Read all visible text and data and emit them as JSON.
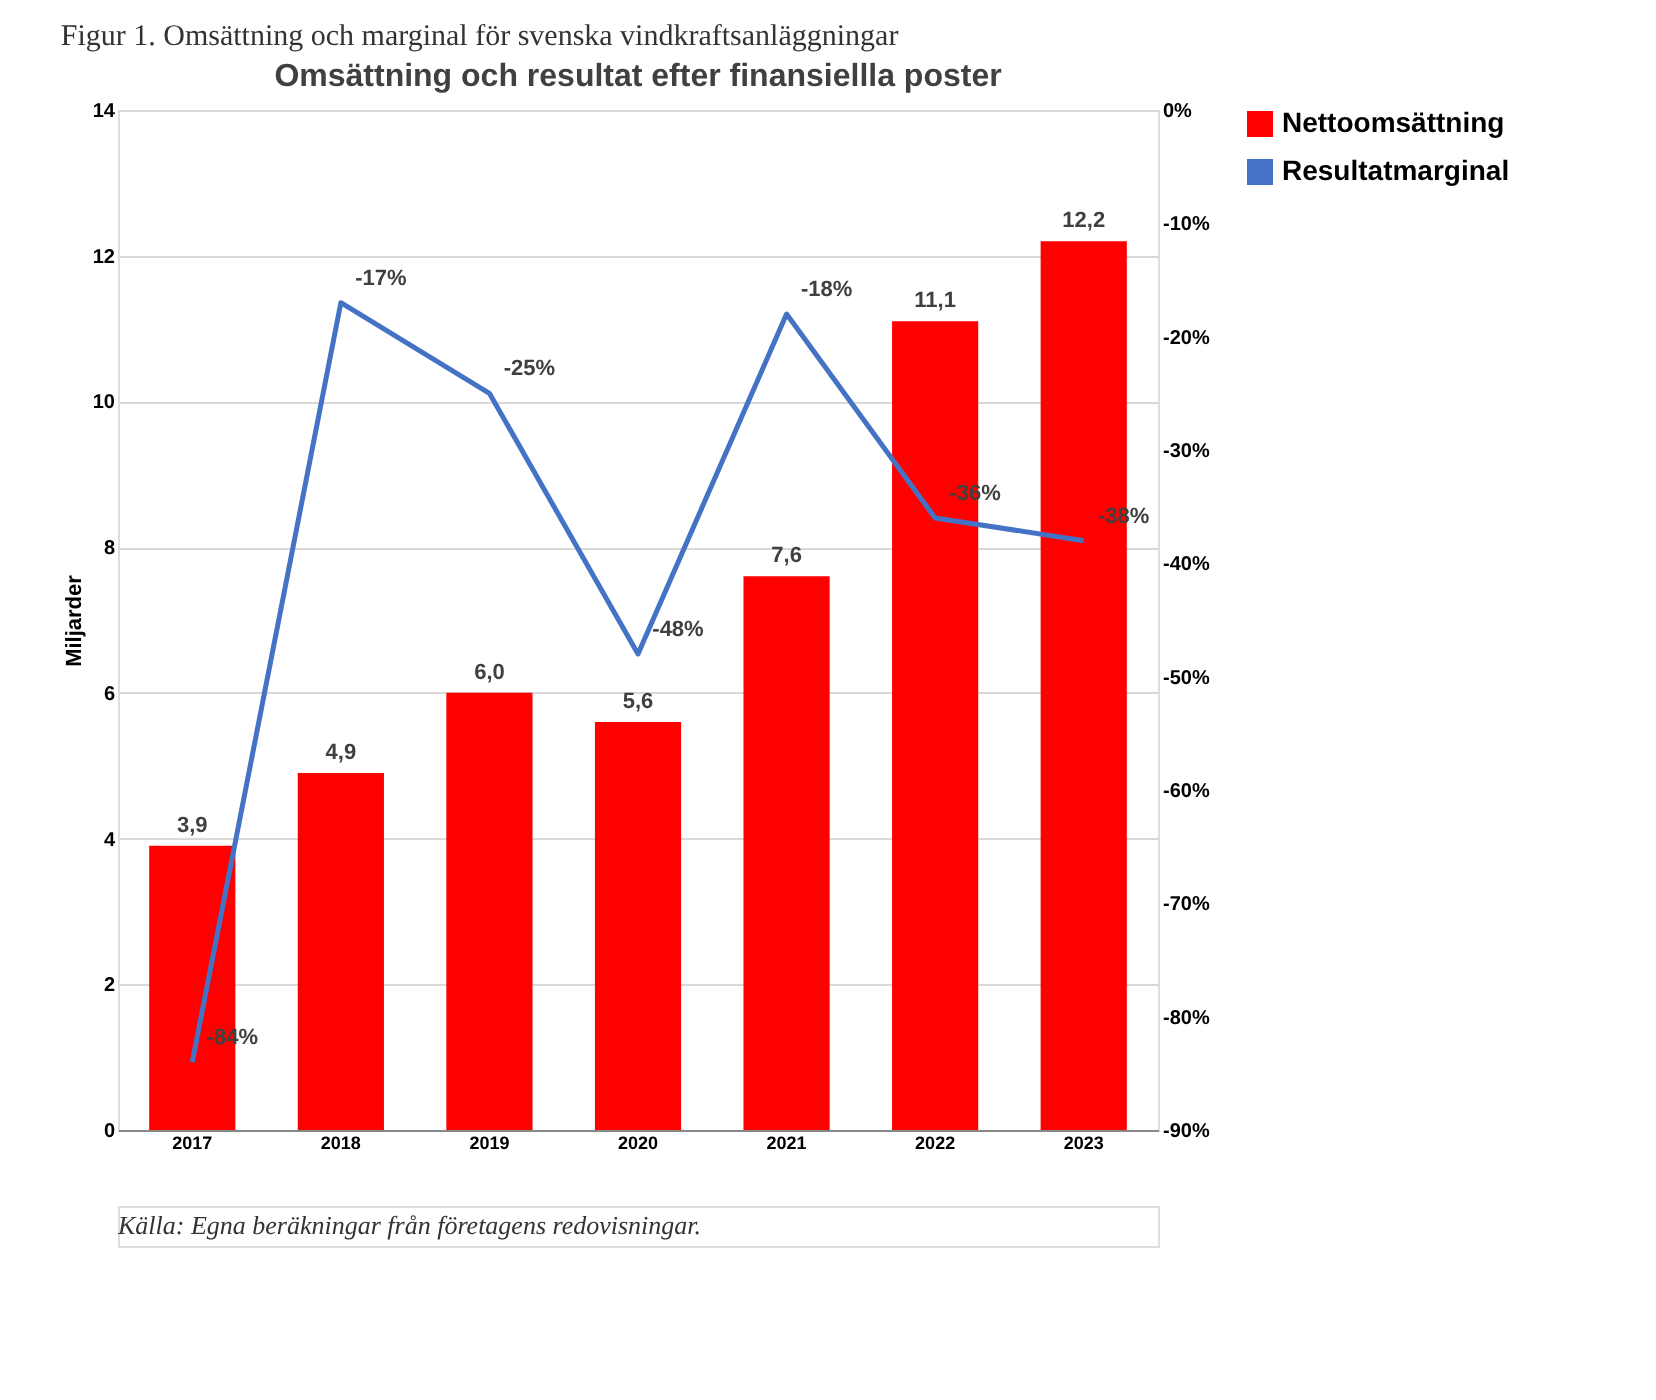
{
  "chart_data": {
    "type": "bar",
    "title": "Figur 1. Omsättning och marginal för svenska vindkraftsanläggningar",
    "subtitle": "Omsättning och resultat efter finansiellla poster",
    "ylabel": "Miljarder",
    "categories": [
      "2017",
      "2018",
      "2019",
      "2020",
      "2021",
      "2022",
      "2023"
    ],
    "series": [
      {
        "name": "Nettoomsättning",
        "color": "#ff0000",
        "values": [
          3.9,
          4.9,
          6.0,
          5.6,
          7.6,
          11.1,
          12.2
        ],
        "value_labels": [
          "3,9",
          "4,9",
          "6,0",
          "5,6",
          "7,6",
          "11,1",
          "12,2"
        ]
      },
      {
        "name": "Resultatmarginal",
        "type": "line",
        "axis": "y2",
        "color": "#4472c4",
        "values": [
          -84,
          -17,
          -25,
          -48,
          -18,
          -36,
          -38
        ],
        "value_labels": [
          "-84%",
          "-17%",
          "-25%",
          "-48%",
          "-18%",
          "-36%",
          "-38%"
        ]
      }
    ],
    "ylim": [
      0,
      14
    ],
    "yticks": [
      0,
      2,
      4,
      6,
      8,
      10,
      12,
      14
    ],
    "y2lim": [
      -90,
      0
    ],
    "y2ticks": [
      {
        "value": -90,
        "label": "-90%"
      },
      {
        "value": -80,
        "label": "-80%"
      },
      {
        "value": -70,
        "label": "-70%"
      },
      {
        "value": -60,
        "label": "-60%"
      },
      {
        "value": -50,
        "label": "-50%"
      },
      {
        "value": -40,
        "label": "-40%"
      },
      {
        "value": -30,
        "label": "-30%"
      },
      {
        "value": -20,
        "label": "-20%"
      },
      {
        "value": -10,
        "label": "-10%"
      },
      {
        "value": 0,
        "label": "0%"
      }
    ],
    "grid": "y",
    "legend": "right",
    "marker": "none",
    "annotations": [
      "Källa: Egna beräkningar från företagens redovisningar."
    ]
  }
}
